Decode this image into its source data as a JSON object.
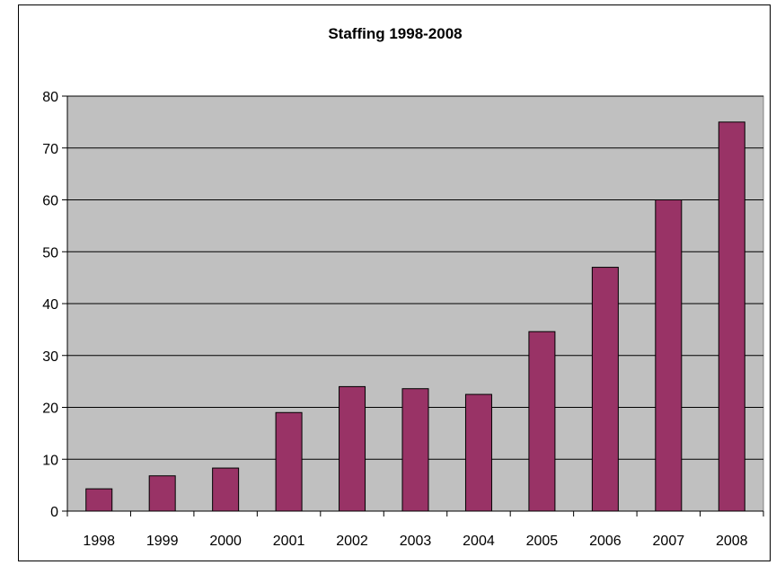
{
  "chart_data": {
    "type": "bar",
    "title": "Staffing 1998-2008",
    "categories": [
      "1998",
      "1999",
      "2000",
      "2001",
      "2002",
      "2003",
      "2004",
      "2005",
      "2006",
      "2007",
      "2008"
    ],
    "values": [
      4.3,
      6.8,
      8.3,
      19,
      24,
      23.6,
      22.5,
      34.6,
      47,
      60,
      75
    ],
    "xlabel": "",
    "ylabel": "",
    "ylim": [
      0,
      80
    ],
    "yticks": [
      "0",
      "10",
      "20",
      "30",
      "40",
      "50",
      "60",
      "70",
      "80"
    ],
    "grid": true,
    "legend": "none",
    "colors": {
      "bar": "#993366",
      "plot_area": "#c0c0c0",
      "gridline": "#000000"
    }
  }
}
